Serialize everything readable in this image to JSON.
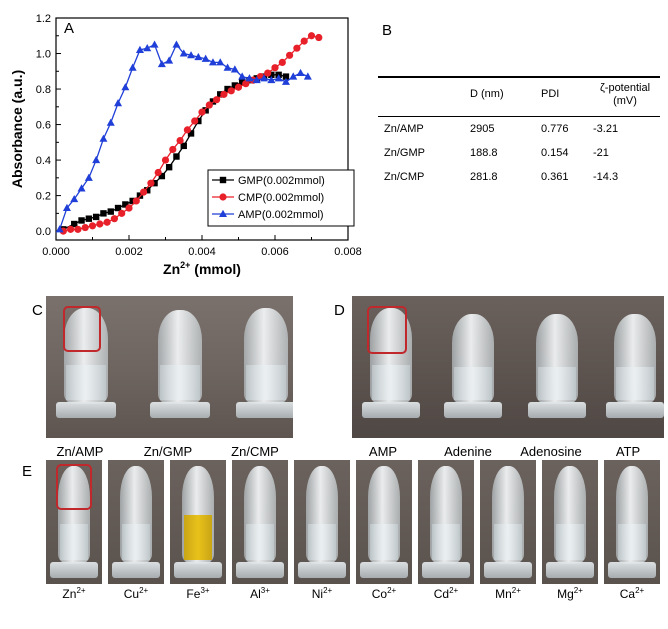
{
  "panels": {
    "a": "A",
    "b": "B",
    "c": "C",
    "d": "D",
    "e": "E"
  },
  "chart_data": {
    "type": "scatter",
    "title": "",
    "xlabel": "Zn2+ (mmol)",
    "ylabel": "Absorbance (a.u.)",
    "xlim": [
      0.0,
      0.008
    ],
    "ylim": [
      -0.05,
      1.2
    ],
    "xticks": [
      "0.000",
      "0.002",
      "0.004",
      "0.006",
      "0.008"
    ],
    "yticks": [
      "0.0",
      "0.2",
      "0.4",
      "0.6",
      "0.8",
      "1.0",
      "1.2"
    ],
    "legend_position": "bottom-right",
    "series": [
      {
        "name": "GMP(0.002mmol)",
        "color": "#000000",
        "marker": "square",
        "x": [
          0.0002,
          0.0005,
          0.0007,
          0.0009,
          0.0011,
          0.0013,
          0.0015,
          0.0017,
          0.0019,
          0.0021,
          0.0023,
          0.0025,
          0.0027,
          0.0029,
          0.0031,
          0.0033,
          0.0035,
          0.0037,
          0.0039,
          0.0041,
          0.0043,
          0.0045,
          0.0047,
          0.0049,
          0.0051,
          0.0053,
          0.0055,
          0.0057,
          0.0059,
          0.0061,
          0.0063
        ],
        "y": [
          0.01,
          0.04,
          0.06,
          0.07,
          0.08,
          0.1,
          0.11,
          0.13,
          0.15,
          0.17,
          0.2,
          0.23,
          0.27,
          0.31,
          0.36,
          0.42,
          0.48,
          0.55,
          0.62,
          0.68,
          0.73,
          0.77,
          0.8,
          0.82,
          0.84,
          0.85,
          0.86,
          0.87,
          0.88,
          0.88,
          0.87
        ]
      },
      {
        "name": "CMP(0.002mmol)",
        "color": "#e8202a",
        "marker": "circle",
        "x": [
          0.0002,
          0.0004,
          0.0006,
          0.0008,
          0.001,
          0.0012,
          0.0014,
          0.0016,
          0.0018,
          0.002,
          0.0022,
          0.0024,
          0.0026,
          0.0028,
          0.003,
          0.0032,
          0.0034,
          0.0036,
          0.0038,
          0.004,
          0.0042,
          0.0044,
          0.0046,
          0.0048,
          0.005,
          0.0052,
          0.0054,
          0.0056,
          0.0058,
          0.006,
          0.0062,
          0.0064,
          0.0066,
          0.0068,
          0.007,
          0.0072
        ],
        "y": [
          0.0,
          0.01,
          0.01,
          0.02,
          0.03,
          0.04,
          0.05,
          0.07,
          0.1,
          0.13,
          0.17,
          0.22,
          0.27,
          0.33,
          0.4,
          0.46,
          0.51,
          0.57,
          0.62,
          0.67,
          0.71,
          0.74,
          0.77,
          0.79,
          0.81,
          0.83,
          0.85,
          0.87,
          0.89,
          0.92,
          0.95,
          0.99,
          1.03,
          1.07,
          1.1,
          1.09
        ]
      },
      {
        "name": "AMP(0.002mmol)",
        "color": "#1f3fd8",
        "marker": "triangle",
        "x": [
          0.0001,
          0.0003,
          0.0005,
          0.0007,
          0.0009,
          0.0011,
          0.0013,
          0.0015,
          0.0017,
          0.0019,
          0.0021,
          0.0023,
          0.0025,
          0.0027,
          0.0029,
          0.0031,
          0.0033,
          0.0035,
          0.0037,
          0.0039,
          0.0041,
          0.0043,
          0.0045,
          0.0047,
          0.0049,
          0.0051,
          0.0053,
          0.0055,
          0.0057,
          0.0059,
          0.0061,
          0.0063,
          0.0065,
          0.0067,
          0.0069
        ],
        "y": [
          0.01,
          0.13,
          0.18,
          0.24,
          0.3,
          0.4,
          0.52,
          0.61,
          0.72,
          0.81,
          0.92,
          1.02,
          1.03,
          1.05,
          0.94,
          0.96,
          1.05,
          1.0,
          0.99,
          0.98,
          0.97,
          0.95,
          0.95,
          0.92,
          0.91,
          0.87,
          0.86,
          0.85,
          0.86,
          0.85,
          0.86,
          0.84,
          0.87,
          0.89,
          0.87
        ]
      }
    ]
  },
  "table": {
    "headers": [
      "",
      "D (nm)",
      "PDI",
      "ζ-potential",
      "(mV)"
    ],
    "rows": [
      [
        "Zn/AMP",
        "2905",
        "0.776",
        "-3.21"
      ],
      [
        "Zn/GMP",
        "188.8",
        "0.154",
        "-21"
      ],
      [
        "Zn/CMP",
        "281.8",
        "0.361",
        "-14.3"
      ]
    ]
  },
  "photos": {
    "c_labels": [
      "Zn/AMP",
      "Zn/GMP",
      "Zn/CMP"
    ],
    "d_labels": [
      "AMP",
      "Adenine",
      "Adenosine",
      "ATP"
    ],
    "e_labels": [
      "Zn",
      "Cu",
      "Fe",
      "Al",
      "Ni",
      "Co",
      "Cd",
      "Mn",
      "Mg",
      "Ca"
    ],
    "e_charges": [
      "2+",
      "2+",
      "3+",
      "3+",
      "2+",
      "2+",
      "2+",
      "2+",
      "2+",
      "2+"
    ],
    "highlight_color": "#c0282c",
    "fe_liquid_color": "#e8c21a"
  }
}
